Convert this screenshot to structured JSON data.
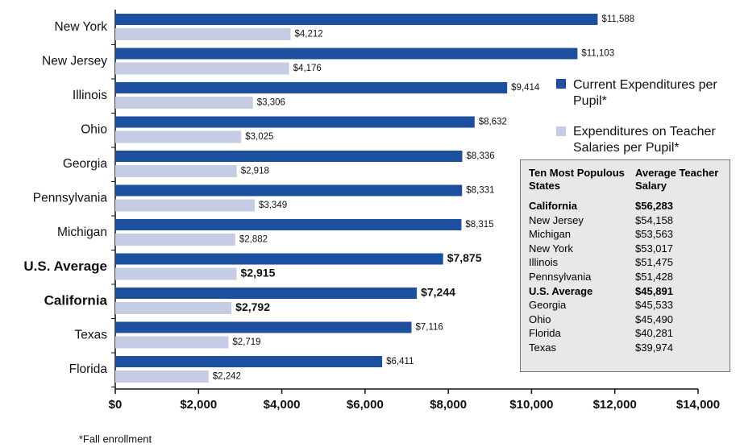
{
  "chart_data": {
    "type": "bar",
    "orientation": "horizontal",
    "categories": [
      "New York",
      "New Jersey",
      "Illinois",
      "Ohio",
      "Georgia",
      "Pennsylvania",
      "Michigan",
      "U.S. Average",
      "California",
      "Texas",
      "Florida"
    ],
    "bold": [
      false,
      false,
      false,
      false,
      false,
      false,
      false,
      true,
      true,
      false,
      false
    ],
    "series": [
      {
        "name": "Current Expenditures per Pupil*",
        "color": "#1c4f9e",
        "values": [
          11588,
          11103,
          9414,
          8632,
          8336,
          8331,
          8315,
          7875,
          7244,
          7116,
          6411
        ],
        "value_labels": [
          "$11,588",
          "$11,103",
          "$9,414",
          "$8,632",
          "$8,336",
          "$8,331",
          "$8,315",
          "$7,875",
          "$7,244",
          "$7,116",
          "$6,411"
        ]
      },
      {
        "name": "Expenditures on Teacher Salaries per Pupil*",
        "color": "#c5cce4",
        "values": [
          4212,
          4176,
          3306,
          3025,
          2918,
          3349,
          2882,
          2915,
          2792,
          2719,
          2242
        ],
        "value_labels": [
          "$4,212",
          "$4,176",
          "$3,306",
          "$3,025",
          "$2,918",
          "$3,349",
          "$2,882",
          "$2,915",
          "$2,792",
          "$2,719",
          "$2,242"
        ]
      }
    ],
    "xlim": [
      0,
      14000
    ],
    "xticks": [
      {
        "value": 0,
        "label": "$0"
      },
      {
        "value": 2000,
        "label": "$2,000"
      },
      {
        "value": 4000,
        "label": "$4,000"
      },
      {
        "value": 6000,
        "label": "$6,000"
      },
      {
        "value": 8000,
        "label": "$8,000"
      },
      {
        "value": 10000,
        "label": "$10,000"
      },
      {
        "value": 12000,
        "label": "$12,000"
      },
      {
        "value": 14000,
        "label": "$14,000"
      }
    ],
    "footnote": "*Fall enrollment",
    "table": {
      "columns": [
        "Ten Most Populous States",
        "Average Teacher Salary"
      ],
      "rows": [
        [
          "California",
          "$56,283"
        ],
        [
          "New Jersey",
          "$54,158"
        ],
        [
          "Michigan",
          "$53,563"
        ],
        [
          "New York",
          "$53,017"
        ],
        [
          "Illinois",
          "$51,475"
        ],
        [
          "Pennsylvania",
          "$51,428"
        ],
        [
          "U.S. Average",
          "$45,891"
        ],
        [
          "Georgia",
          "$45,533"
        ],
        [
          "Ohio",
          "$45,490"
        ],
        [
          "Florida",
          "$40,281"
        ],
        [
          "Texas",
          "$39,974"
        ]
      ],
      "bold": [
        true,
        false,
        false,
        false,
        false,
        false,
        true,
        false,
        false,
        false,
        false
      ]
    }
  }
}
